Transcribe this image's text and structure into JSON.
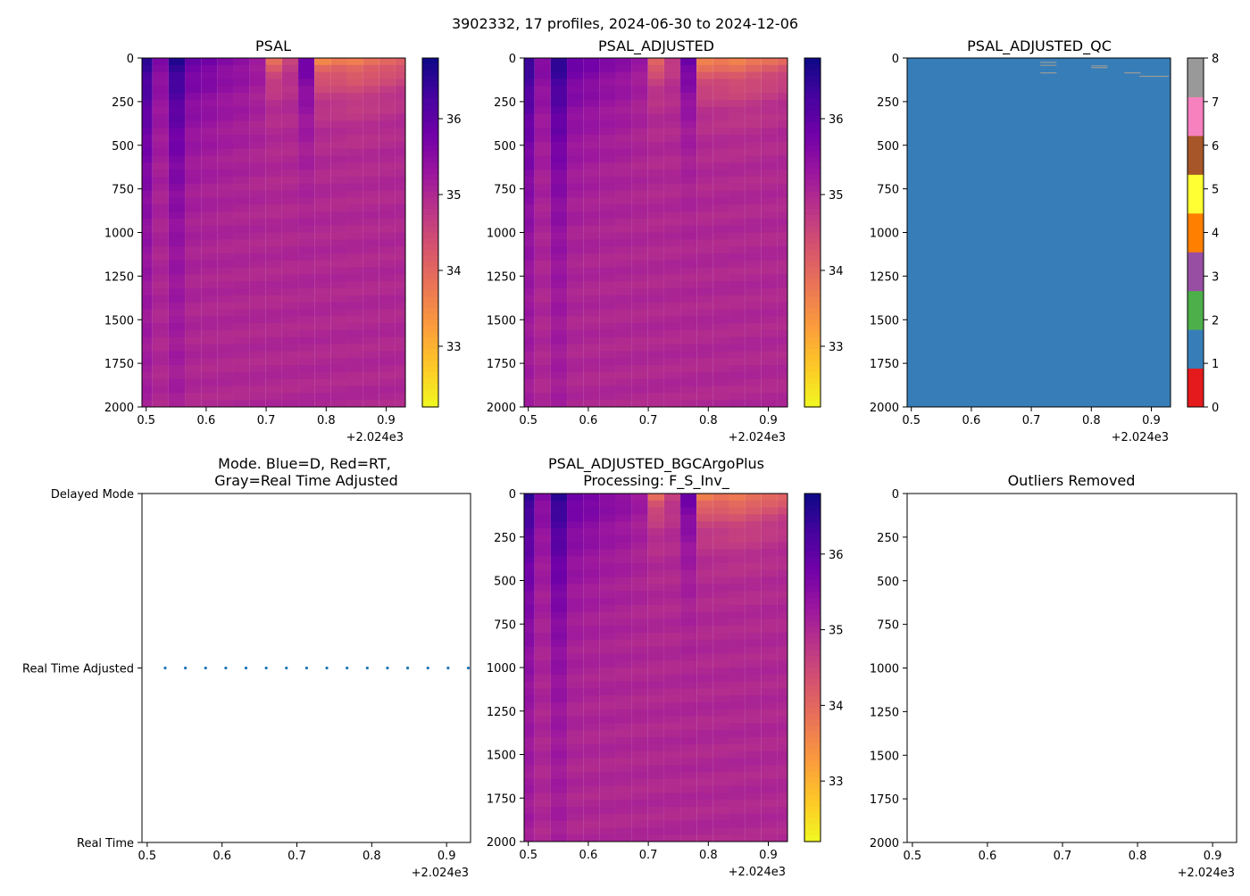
{
  "figure": {
    "title": "3902332, 17 profiles, 2024-06-30 to 2024-12-06"
  },
  "colors": {
    "plasma": [
      "#0d0887",
      "#46039f",
      "#7201a8",
      "#9c179e",
      "#bd3786",
      "#d8576b",
      "#ed7953",
      "#fb9f3a",
      "#fdca26",
      "#f0f921"
    ],
    "qc": [
      "#e41a1c",
      "#377eb8",
      "#4daf4a",
      "#984ea3",
      "#ff7f00",
      "#ffff33",
      "#a65628",
      "#f781bf",
      "#999999"
    ],
    "mode_dot": "#1f77b4",
    "outline": "#000000"
  },
  "x_offset_label": "+2.024e3",
  "chart_data": [
    {
      "id": "psal",
      "type": "heatmap",
      "title": "PSAL",
      "xlim": [
        0.493,
        0.932
      ],
      "xticks": [
        "0.5",
        "0.6",
        "0.7",
        "0.8",
        "0.9"
      ],
      "ylim": [
        2000,
        0
      ],
      "yticks": [
        "0",
        "250",
        "500",
        "750",
        "1000",
        "1250",
        "1500",
        "1750",
        "2000"
      ],
      "colorbar": {
        "range": [
          32.2,
          36.8
        ],
        "ticks": [
          "33",
          "34",
          "35",
          "36"
        ]
      },
      "profiles": [
        {
          "t": 0.497,
          "s0": 36.5,
          "sdeep": 35.1,
          "d": 650
        },
        {
          "t": 0.524,
          "s0": 35.6,
          "sdeep": 35.0,
          "d": 450
        },
        {
          "t": 0.551,
          "s0": 36.6,
          "sdeep": 35.1,
          "d": 600
        },
        {
          "t": 0.578,
          "s0": 35.9,
          "sdeep": 35.0,
          "d": 450
        },
        {
          "t": 0.605,
          "s0": 35.8,
          "sdeep": 35.0,
          "d": 400
        },
        {
          "t": 0.632,
          "s0": 35.6,
          "sdeep": 35.0,
          "d": 380
        },
        {
          "t": 0.659,
          "s0": 35.5,
          "sdeep": 35.0,
          "d": 350
        },
        {
          "t": 0.686,
          "s0": 35.3,
          "sdeep": 35.0,
          "d": 300
        },
        {
          "t": 0.713,
          "s0": 33.8,
          "sdeep": 35.0,
          "d": 120
        },
        {
          "t": 0.74,
          "s0": 34.6,
          "sdeep": 35.0,
          "d": 150
        },
        {
          "t": 0.767,
          "s0": 35.9,
          "sdeep": 35.0,
          "d": 300
        },
        {
          "t": 0.794,
          "s0": 33.4,
          "sdeep": 35.0,
          "d": 140
        },
        {
          "t": 0.821,
          "s0": 33.6,
          "sdeep": 35.0,
          "d": 160
        },
        {
          "t": 0.848,
          "s0": 33.5,
          "sdeep": 35.0,
          "d": 170
        },
        {
          "t": 0.875,
          "s0": 33.7,
          "sdeep": 35.0,
          "d": 170
        },
        {
          "t": 0.902,
          "s0": 33.8,
          "sdeep": 35.0,
          "d": 150
        },
        {
          "t": 0.929,
          "s0": 33.9,
          "sdeep": 35.0,
          "d": 130
        }
      ]
    },
    {
      "id": "psal_adj",
      "type": "heatmap",
      "title": "PSAL_ADJUSTED",
      "xlim": [
        0.493,
        0.932
      ],
      "xticks": [
        "0.5",
        "0.6",
        "0.7",
        "0.8",
        "0.9"
      ],
      "ylim": [
        2000,
        0
      ],
      "yticks": [
        "0",
        "250",
        "500",
        "750",
        "1000",
        "1250",
        "1500",
        "1750",
        "2000"
      ],
      "colorbar": {
        "range": [
          32.2,
          36.8
        ],
        "ticks": [
          "33",
          "34",
          "35",
          "36"
        ]
      }
    },
    {
      "id": "qc",
      "type": "heatmap",
      "title": "PSAL_ADJUSTED_QC",
      "xlim": [
        0.493,
        0.932
      ],
      "xticks": [
        "0.5",
        "0.6",
        "0.7",
        "0.8",
        "0.9"
      ],
      "ylim": [
        2000,
        0
      ],
      "yticks": [
        "0",
        "250",
        "500",
        "750",
        "1000",
        "1250",
        "1500",
        "1750",
        "2000"
      ],
      "background_flag": 1,
      "colorbar": {
        "range": [
          0,
          8
        ],
        "ticks": [
          "0",
          "1",
          "2",
          "3",
          "4",
          "5",
          "6",
          "7",
          "8"
        ]
      },
      "flag_marks": [
        {
          "t0": 0.715,
          "t1": 0.742,
          "depth": 25,
          "flag": 8
        },
        {
          "t0": 0.715,
          "t1": 0.742,
          "depth": 42,
          "flag": 8
        },
        {
          "t0": 0.715,
          "t1": 0.742,
          "depth": 85,
          "flag": 8
        },
        {
          "t0": 0.8,
          "t1": 0.827,
          "depth": 45,
          "flag": 8
        },
        {
          "t0": 0.8,
          "t1": 0.827,
          "depth": 55,
          "flag": 8
        },
        {
          "t0": 0.855,
          "t1": 0.882,
          "depth": 85,
          "flag": 8
        },
        {
          "t0": 0.88,
          "t1": 0.929,
          "depth": 105,
          "flag": 8
        }
      ]
    },
    {
      "id": "mode",
      "type": "scatter",
      "title_lines": [
        "Mode. Blue=D, Red=RT,",
        "Gray=Real Time Adjusted"
      ],
      "xlim": [
        0.493,
        0.932
      ],
      "xticks": [
        "0.5",
        "0.6",
        "0.7",
        "0.8",
        "0.9"
      ],
      "ycategories": [
        "Delayed Mode",
        "Real Time Adjusted",
        "Real Time"
      ],
      "points": [
        {
          "x": 0.524,
          "y": "Real Time Adjusted"
        },
        {
          "x": 0.551,
          "y": "Real Time Adjusted"
        },
        {
          "x": 0.578,
          "y": "Real Time Adjusted"
        },
        {
          "x": 0.605,
          "y": "Real Time Adjusted"
        },
        {
          "x": 0.632,
          "y": "Real Time Adjusted"
        },
        {
          "x": 0.659,
          "y": "Real Time Adjusted"
        },
        {
          "x": 0.686,
          "y": "Real Time Adjusted"
        },
        {
          "x": 0.713,
          "y": "Real Time Adjusted"
        },
        {
          "x": 0.74,
          "y": "Real Time Adjusted"
        },
        {
          "x": 0.767,
          "y": "Real Time Adjusted"
        },
        {
          "x": 0.794,
          "y": "Real Time Adjusted"
        },
        {
          "x": 0.821,
          "y": "Real Time Adjusted"
        },
        {
          "x": 0.848,
          "y": "Real Time Adjusted"
        },
        {
          "x": 0.875,
          "y": "Real Time Adjusted"
        },
        {
          "x": 0.902,
          "y": "Real Time Adjusted"
        },
        {
          "x": 0.929,
          "y": "Real Time Adjusted"
        }
      ]
    },
    {
      "id": "bgc",
      "type": "heatmap",
      "title_lines": [
        "PSAL_ADJUSTED_BGCArgoPlus",
        "Processing: F_S_Inv_"
      ],
      "xlim": [
        0.493,
        0.932
      ],
      "xticks": [
        "0.5",
        "0.6",
        "0.7",
        "0.8",
        "0.9"
      ],
      "ylim": [
        2000,
        0
      ],
      "yticks": [
        "0",
        "250",
        "500",
        "750",
        "1000",
        "1250",
        "1500",
        "1750",
        "2000"
      ],
      "colorbar": {
        "range": [
          32.2,
          36.8
        ],
        "ticks": [
          "33",
          "34",
          "35",
          "36"
        ]
      }
    },
    {
      "id": "outliers",
      "type": "scatter",
      "title": "Outliers Removed",
      "xlim": [
        0.493,
        0.932
      ],
      "xticks": [
        "0.5",
        "0.6",
        "0.7",
        "0.8",
        "0.9"
      ],
      "ylim": [
        2000,
        0
      ],
      "yticks": [
        "0",
        "250",
        "500",
        "750",
        "1000",
        "1250",
        "1500",
        "1750",
        "2000"
      ],
      "points": []
    }
  ]
}
